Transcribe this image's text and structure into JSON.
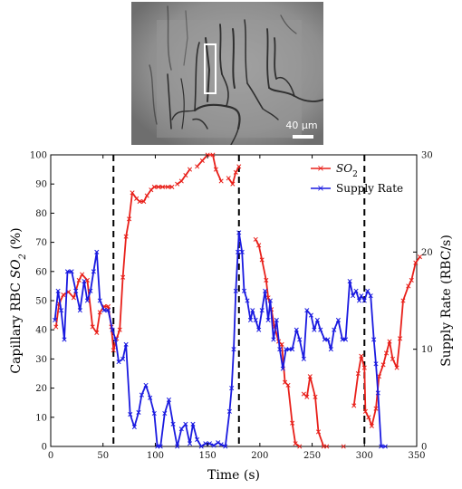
{
  "micrograph": {
    "scale_label": "40 μm"
  },
  "chart_data": {
    "type": "line",
    "x": {
      "label": "Time (s)",
      "lim": [
        0,
        350
      ],
      "ticks": [
        0,
        50,
        100,
        150,
        200,
        250,
        300,
        350
      ]
    },
    "y_left": {
      "label_parts": [
        "Capillary RBC ",
        "SO",
        "2",
        " (%)"
      ],
      "lim": [
        0,
        100
      ],
      "ticks": [
        0,
        10,
        20,
        30,
        40,
        50,
        60,
        70,
        80,
        90,
        100
      ]
    },
    "y_right": {
      "label": "Supply Rate (RBC/s)",
      "lim": [
        0,
        30
      ],
      "ticks": [
        0,
        10,
        20,
        30
      ]
    },
    "vlines": [
      60,
      180,
      300
    ],
    "legend": {
      "position": "top-right",
      "entries": [
        {
          "name_parts": [
            "SO",
            "2"
          ],
          "color": "#e8201a"
        },
        {
          "name": "Supply Rate",
          "color": "#1a1ae0"
        }
      ]
    },
    "series": [
      {
        "key": "so2",
        "axis": "left",
        "color": "#e8201a",
        "marker": "x",
        "segments": [
          [
            [
              5,
              41
            ],
            [
              8,
              49
            ],
            [
              12,
              52
            ],
            [
              17,
              53
            ],
            [
              22,
              51
            ],
            [
              27,
              57
            ],
            [
              30,
              59
            ],
            [
              35,
              57
            ],
            [
              40,
              41
            ],
            [
              44,
              39
            ],
            [
              47,
              46
            ],
            [
              51,
              48
            ],
            [
              55,
              48
            ],
            [
              58,
              41
            ],
            [
              60,
              33
            ],
            [
              63,
              37
            ],
            [
              66,
              40
            ],
            [
              69,
              58
            ],
            [
              72,
              72
            ],
            [
              75,
              78
            ],
            [
              78,
              87
            ],
            [
              82,
              85
            ],
            [
              85,
              84
            ],
            [
              89,
              84
            ],
            [
              92,
              86
            ],
            [
              96,
              88
            ],
            [
              99,
              89
            ],
            [
              103,
              89
            ],
            [
              107,
              89
            ],
            [
              112,
              89
            ],
            [
              116,
              89
            ]
          ],
          [
            [
              121,
              90
            ],
            [
              125,
              91
            ],
            [
              129,
              93
            ],
            [
              133,
              95
            ]
          ],
          [
            [
              140,
              96
            ],
            [
              145,
              98
            ],
            [
              150,
              103
            ],
            [
              155,
              100
            ],
            [
              158,
              95
            ],
            [
              163,
              91
            ]
          ],
          [
            [
              170,
              92
            ],
            [
              174,
              90
            ],
            [
              177,
              94
            ],
            [
              180,
              96
            ]
          ],
          [
            [
              196,
              71
            ],
            [
              199,
              69
            ],
            [
              202,
              64
            ],
            [
              206,
              57
            ],
            [
              208,
              51
            ],
            [
              211,
              47
            ],
            [
              214,
              41
            ],
            [
              218,
              36
            ],
            [
              221,
              35
            ],
            [
              224,
              22
            ],
            [
              227,
              21
            ],
            [
              231,
              8
            ],
            [
              234,
              1
            ],
            [
              238,
              0
            ]
          ],
          [
            [
              242,
              18
            ],
            [
              245,
              17
            ],
            [
              248,
              24
            ],
            [
              253,
              17
            ],
            [
              256,
              5
            ],
            [
              261,
              0
            ]
          ],
          [
            [
              264,
              0
            ]
          ],
          [
            [
              280,
              0
            ]
          ],
          [
            [
              290,
              14
            ],
            [
              294,
              25
            ],
            [
              297,
              31
            ],
            [
              300,
              27
            ],
            [
              301,
              12
            ],
            [
              304,
              10
            ],
            [
              307,
              7
            ],
            [
              311,
              13
            ],
            [
              314,
              24
            ],
            [
              318,
              28
            ],
            [
              321,
              32
            ],
            [
              324,
              36
            ],
            [
              327,
              30
            ],
            [
              331,
              27
            ],
            [
              334,
              37
            ],
            [
              337,
              50
            ],
            [
              342,
              55
            ],
            [
              345,
              57
            ],
            [
              349,
              63
            ],
            [
              353,
              65
            ]
          ]
        ]
      },
      {
        "key": "supply",
        "axis": "right",
        "color": "#1a1ae0",
        "marker": "x",
        "segments": [
          [
            [
              4,
              13
            ],
            [
              7,
              16
            ],
            [
              10,
              14
            ],
            [
              13,
              11
            ],
            [
              16,
              18
            ],
            [
              20,
              18
            ],
            [
              24,
              16
            ],
            [
              28,
              14
            ],
            [
              32,
              17
            ],
            [
              35,
              15
            ],
            [
              38,
              16
            ],
            [
              41,
              18
            ],
            [
              44,
              20
            ],
            [
              47,
              15
            ],
            [
              51,
              14
            ],
            [
              55,
              14
            ],
            [
              59,
              12
            ],
            [
              62,
              11
            ],
            [
              65,
              8.7
            ],
            [
              69,
              9
            ],
            [
              72,
              10.5
            ],
            [
              76,
              3.3
            ],
            [
              80,
              2
            ],
            [
              84,
              3.5
            ],
            [
              87,
              5.3
            ],
            [
              91,
              6.3
            ],
            [
              95,
              5
            ],
            [
              99,
              3.4
            ],
            [
              102,
              0
            ],
            [
              105,
              0
            ],
            [
              109,
              3.4
            ],
            [
              113,
              4.8
            ],
            [
              117,
              2.3
            ],
            [
              121,
              0
            ],
            [
              125,
              1.8
            ],
            [
              129,
              2.3
            ],
            [
              133,
              0.3
            ],
            [
              136,
              2.3
            ],
            [
              140,
              0.7
            ],
            [
              144,
              0
            ],
            [
              148,
              0.3
            ],
            [
              152,
              0.3
            ],
            [
              156,
              0.1
            ],
            [
              160,
              0.4
            ],
            [
              163,
              0.2
            ],
            [
              167,
              0
            ],
            [
              171,
              3.6
            ],
            [
              173,
              6
            ],
            [
              175,
              10
            ],
            [
              177,
              16
            ],
            [
              179,
              20
            ],
            [
              180,
              22
            ],
            [
              183,
              20
            ],
            [
              185,
              16
            ],
            [
              188,
              15
            ],
            [
              191,
              13
            ],
            [
              193,
              14
            ],
            [
              196,
              13
            ],
            [
              199,
              12
            ],
            [
              202,
              14
            ],
            [
              205,
              16
            ],
            [
              208,
              13
            ],
            [
              210,
              15
            ],
            [
              213,
              11
            ],
            [
              216,
              13
            ],
            [
              219,
              10
            ],
            [
              222,
              8
            ],
            [
              225,
              10
            ],
            [
              228,
              10
            ],
            [
              231,
              10
            ],
            [
              235,
              12
            ],
            [
              238,
              11
            ],
            [
              242,
              9
            ],
            [
              245,
              14
            ],
            [
              249,
              13.5
            ],
            [
              252,
              12
            ],
            [
              255,
              13
            ],
            [
              258,
              12
            ],
            [
              262,
              11
            ],
            [
              265,
              11
            ],
            [
              268,
              10
            ],
            [
              271,
              12
            ],
            [
              275,
              13
            ],
            [
              279,
              11
            ],
            [
              282,
              11
            ],
            [
              286,
              17
            ],
            [
              289,
              15.5
            ],
            [
              292,
              16
            ],
            [
              295,
              15
            ],
            [
              297,
              15.5
            ],
            [
              300,
              15
            ],
            [
              303,
              16
            ],
            [
              306,
              15.5
            ],
            [
              309,
              11
            ],
            [
              311,
              8.5
            ],
            [
              313,
              5.5
            ],
            [
              316,
              0
            ],
            [
              320,
              0
            ]
          ]
        ]
      }
    ]
  }
}
